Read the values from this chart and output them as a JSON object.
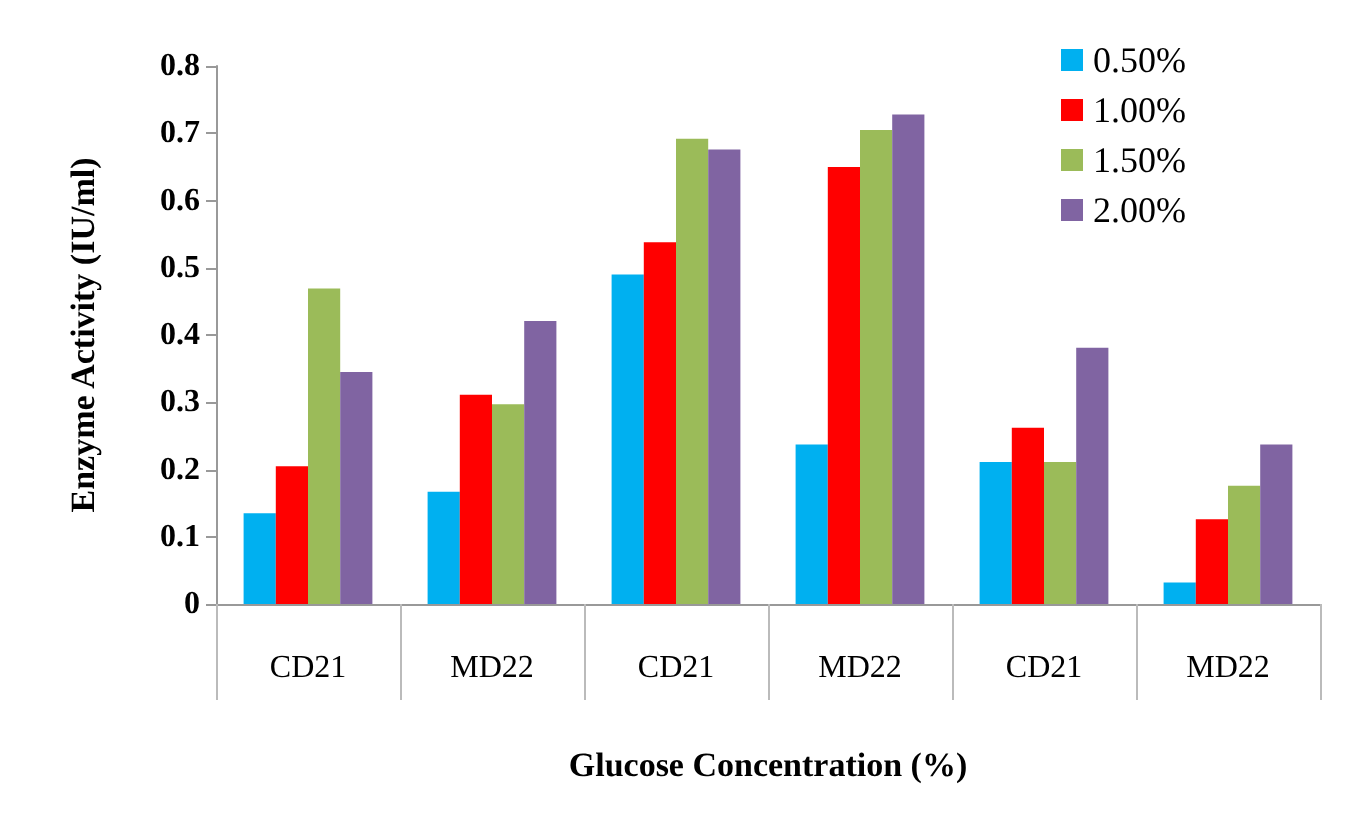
{
  "chart_data": {
    "type": "bar",
    "xlabel": "Glucose Concentration (%)",
    "ylabel": "Enzyme Activity (IU/ml)",
    "categories": [
      "CD21",
      "MD22",
      "CD21",
      "MD22",
      "CD21",
      "MD22"
    ],
    "series": [
      {
        "name": "0.50%",
        "color": "#00b0f0",
        "values": [
          0.135,
          0.167,
          0.49,
          0.237,
          0.211,
          0.032
        ]
      },
      {
        "name": "1.00%",
        "color": "#ff0000",
        "values": [
          0.205,
          0.311,
          0.538,
          0.65,
          0.262,
          0.126
        ]
      },
      {
        "name": "1.50%",
        "color": "#9bbb59",
        "values": [
          0.469,
          0.297,
          0.692,
          0.705,
          0.211,
          0.176
        ]
      },
      {
        "name": "2.00%",
        "color": "#8064a2",
        "values": [
          0.345,
          0.421,
          0.676,
          0.728,
          0.381,
          0.237
        ]
      }
    ],
    "ylim": [
      0,
      0.8
    ],
    "yticks": [
      0,
      0.1,
      0.2,
      0.3,
      0.4,
      0.5,
      0.6,
      0.7,
      0.8
    ],
    "grid": false,
    "legend": "top right"
  }
}
